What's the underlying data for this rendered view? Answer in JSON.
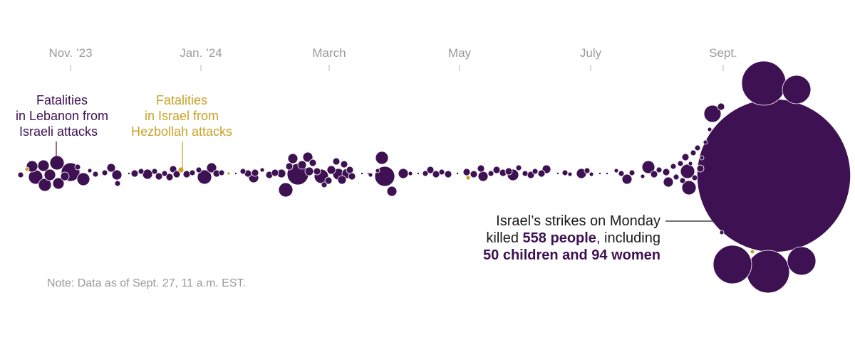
{
  "chart_data": {
    "type": "bubble-timeline",
    "x_ticks": [
      "Nov. ’23",
      "Jan. ’24",
      "March",
      "May",
      "July",
      "Sept."
    ],
    "x_range": [
      "2023-10-08",
      "2024-09-27"
    ],
    "series": [
      {
        "name": "Fatalities in Lebanon from Israeli attacks",
        "color": "#3d1152"
      },
      {
        "name": "Fatalities in Israel from Hezbollah attacks",
        "color": "#c9a227"
      }
    ],
    "legend": {
      "lebanon": [
        "Fatalities",
        "in Lebanon from",
        "Israeli attacks"
      ],
      "israel": [
        "Fatalities",
        "in Israel from",
        "Hezbollah attacks"
      ]
    },
    "annotation": {
      "line1": "Israel’s strikes on Monday",
      "line2_prefix": "killed ",
      "line2_bold": "558 people",
      "line2_suffix": ", including",
      "line3_bold": "50 children and 94 women",
      "value": 558
    },
    "note": "Note: Data as of Sept. 27, 11 a.m. EST."
  }
}
